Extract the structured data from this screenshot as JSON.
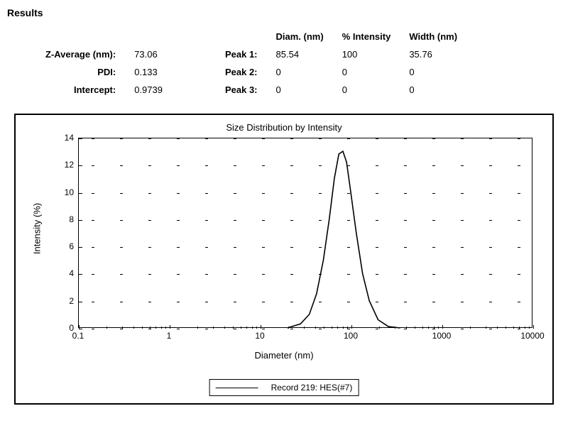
{
  "title": "Results",
  "summary": {
    "rows": [
      {
        "label": "Z-Average (nm):",
        "value": "73.06"
      },
      {
        "label": "PDI:",
        "value": "0.133"
      },
      {
        "label": "Intercept:",
        "value": "0.9739"
      }
    ]
  },
  "peaks": {
    "headers": {
      "peak_label": "",
      "diam": "Diam. (nm)",
      "intensity": "% Intensity",
      "width": "Width (nm)"
    },
    "rows": [
      {
        "label": "Peak 1:",
        "diam": "85.54",
        "intensity": "100",
        "width": "35.76"
      },
      {
        "label": "Peak 2:",
        "diam": "0",
        "intensity": "0",
        "width": "0"
      },
      {
        "label": "Peak 3:",
        "diam": "0",
        "intensity": "0",
        "width": "0"
      }
    ]
  },
  "chart": {
    "type": "line",
    "title": "Size Distribution by Intensity",
    "xlabel": "Diameter (nm)",
    "ylabel": "Intensity (%)",
    "xscale": "log",
    "xlim": [
      0.1,
      10000
    ],
    "ylim": [
      0,
      14
    ],
    "xticks": [
      0.1,
      1,
      10,
      100,
      1000,
      10000
    ],
    "xtick_labels": [
      "0.1",
      "1",
      "10",
      "100",
      "1000",
      "10000"
    ],
    "yticks": [
      0,
      2,
      4,
      6,
      8,
      10,
      12,
      14
    ],
    "ytick_labels": [
      "0",
      "2",
      "4",
      "6",
      "8",
      "10",
      "12",
      "14"
    ],
    "grid_style": "dash",
    "grid_dash_len": 4,
    "grid_gap": 40,
    "grid_color": "#000000",
    "background_color": "#ffffff",
    "line_color": "#000000",
    "line_width": 1.6,
    "series": [
      {
        "name": "Record 219: HES(#7)",
        "x": [
          20,
          28,
          35,
          42,
          50,
          58,
          66,
          74,
          82,
          90,
          100,
          115,
          135,
          160,
          200,
          260,
          350
        ],
        "y": [
          0,
          0.3,
          1.0,
          2.5,
          5.0,
          8.0,
          11.0,
          12.8,
          13.0,
          12.2,
          10.0,
          7.0,
          4.0,
          2.0,
          0.6,
          0.1,
          0
        ]
      }
    ],
    "title_fontsize": 13,
    "label_fontsize": 13,
    "tick_fontsize": 12
  },
  "legend": {
    "label": "Record 219: HES(#7)"
  }
}
